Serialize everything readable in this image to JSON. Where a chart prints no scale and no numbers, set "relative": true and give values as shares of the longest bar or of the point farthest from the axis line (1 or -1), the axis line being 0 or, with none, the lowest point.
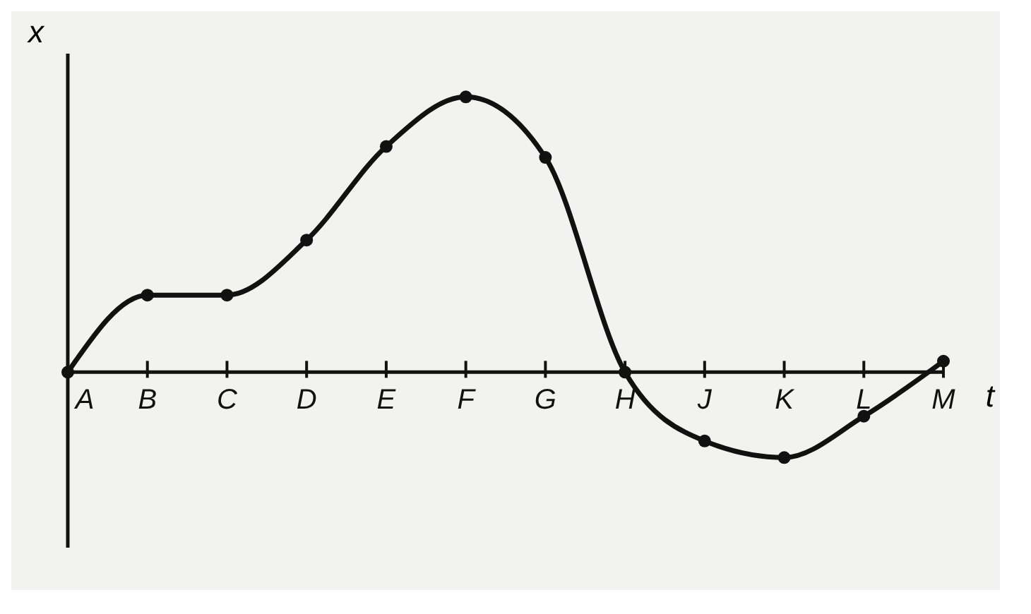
{
  "chart_data": {
    "type": "line",
    "relative": true,
    "xlabel": "t",
    "ylabel": "x",
    "categories": [
      "A",
      "B",
      "C",
      "D",
      "E",
      "F",
      "G",
      "H",
      "J",
      "K",
      "L",
      "M"
    ],
    "series": [
      {
        "color": "#111111",
        "values": [
          0,
          0.28,
          0.28,
          0.48,
          0.82,
          1,
          0.78,
          0,
          -0.25,
          -0.31,
          -0.16,
          0.04
        ]
      }
    ],
    "marker": "circle",
    "line_style": "solid"
  }
}
